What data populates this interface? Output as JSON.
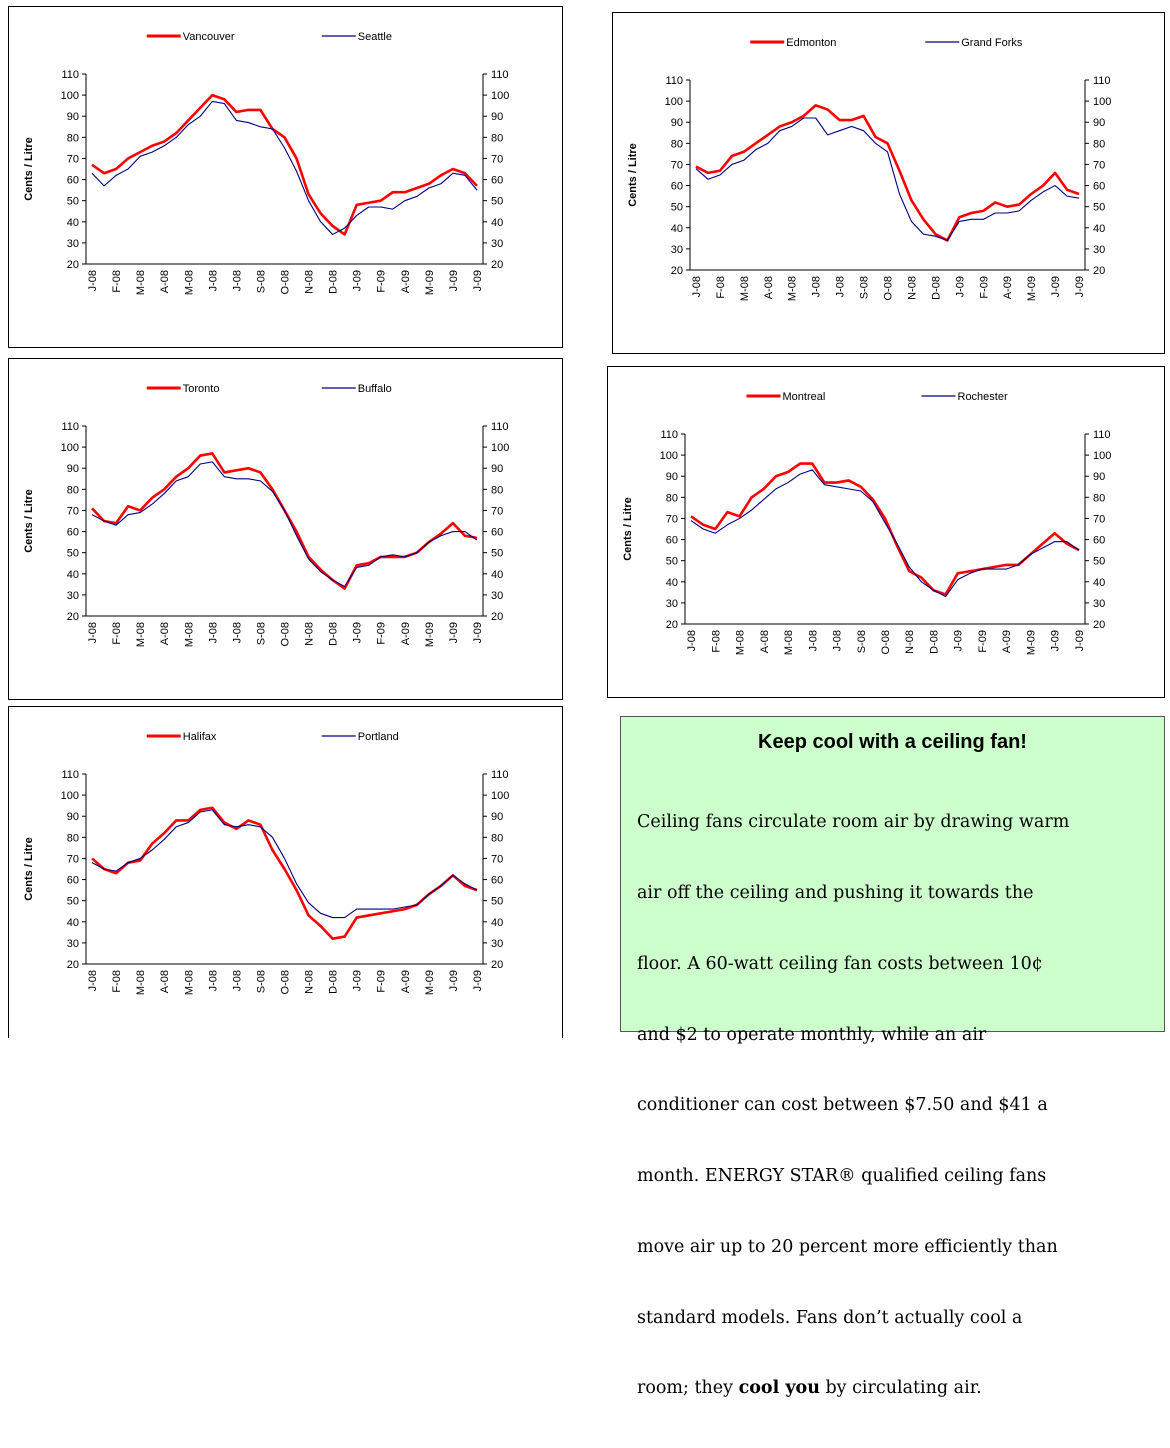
{
  "chart_data": [
    {
      "type": "line",
      "ylabel": "Cents / Litre",
      "categories": [
        "J-08",
        null,
        "F-08",
        null,
        "M-08",
        null,
        "A-08",
        null,
        "M-08",
        null,
        "J-08",
        null,
        "J-08",
        null,
        "S-08",
        null,
        "O-08",
        null,
        "N-08",
        null,
        "D-08",
        null,
        "J-09",
        null,
        "F-09",
        null,
        "A-09",
        null,
        "M-09",
        null,
        "J-09",
        null,
        "J-09"
      ],
      "series": [
        {
          "name": "Vancouver",
          "color": "#ff0000",
          "values": [
            67,
            63,
            65,
            70,
            73,
            76,
            78,
            82,
            88,
            94,
            100,
            98,
            92,
            93,
            93,
            84,
            80,
            70,
            53,
            44,
            38,
            34,
            48,
            49,
            50,
            54,
            54,
            56,
            58,
            62,
            65,
            63,
            57
          ]
        },
        {
          "name": "Seattle",
          "color": "#000080",
          "values": [
            63,
            57,
            62,
            65,
            71,
            73,
            76,
            80,
            86,
            90,
            97,
            96,
            88,
            87,
            85,
            84,
            75,
            64,
            50,
            40,
            34,
            37,
            43,
            47,
            47,
            46,
            50,
            52,
            56,
            58,
            63,
            62,
            55
          ]
        }
      ],
      "ylim": [
        20,
        110
      ],
      "yticks": [
        20,
        30,
        40,
        50,
        60,
        70,
        80,
        90,
        100,
        110
      ],
      "y2lim": [
        20,
        110
      ],
      "y2ticks": [
        20,
        30,
        40,
        50,
        60,
        70,
        80,
        90,
        100,
        110
      ]
    },
    {
      "type": "line",
      "ylabel": "Cents / Litre",
      "categories": [
        "J-08",
        null,
        "F-08",
        null,
        "M-08",
        null,
        "A-08",
        null,
        "M-08",
        null,
        "J-08",
        null,
        "J-08",
        null,
        "S-08",
        null,
        "O-08",
        null,
        "N-08",
        null,
        "D-08",
        null,
        "J-09",
        null,
        "F-09",
        null,
        "A-09",
        null,
        "M-09",
        null,
        "J-09",
        null,
        "J-09"
      ],
      "series": [
        {
          "name": "Edmonton",
          "color": "#ff0000",
          "values": [
            69,
            66,
            67,
            74,
            76,
            80,
            84,
            88,
            90,
            93,
            98,
            96,
            91,
            91,
            93,
            83,
            80,
            67,
            53,
            44,
            37,
            34,
            45,
            47,
            48,
            52,
            50,
            51,
            56,
            60,
            66,
            58,
            56
          ]
        },
        {
          "name": "Grand Forks",
          "color": "#000080",
          "values": [
            68,
            63,
            65,
            70,
            72,
            77,
            80,
            86,
            88,
            92,
            92,
            84,
            86,
            88,
            86,
            80,
            76,
            56,
            43,
            37,
            36,
            34,
            43,
            44,
            44,
            47,
            47,
            48,
            53,
            57,
            60,
            55,
            54
          ]
        }
      ],
      "ylim": [
        20,
        110
      ],
      "yticks": [
        20,
        30,
        40,
        50,
        60,
        70,
        80,
        90,
        100,
        110
      ],
      "y2lim": [
        20,
        110
      ],
      "y2ticks": [
        20,
        30,
        40,
        50,
        60,
        70,
        80,
        90,
        100,
        110
      ]
    },
    {
      "type": "line",
      "ylabel": "Cents / Litre",
      "categories": [
        "J-08",
        null,
        "F-08",
        null,
        "M-08",
        null,
        "A-08",
        null,
        "M-08",
        null,
        "J-08",
        null,
        "J-08",
        null,
        "S-08",
        null,
        "O-08",
        null,
        "N-08",
        null,
        "D-08",
        null,
        "J-09",
        null,
        "F-09",
        null,
        "A-09",
        null,
        "M-09",
        null,
        "J-09",
        null,
        "J-09"
      ],
      "series": [
        {
          "name": "Toronto",
          "color": "#ff0000",
          "values": [
            71,
            65,
            64,
            72,
            70,
            76,
            80,
            86,
            90,
            96,
            97,
            88,
            89,
            90,
            88,
            80,
            70,
            60,
            48,
            42,
            37,
            33,
            44,
            45,
            48,
            48,
            48,
            50,
            55,
            59,
            64,
            58,
            57
          ]
        },
        {
          "name": "Buffalo",
          "color": "#000080",
          "values": [
            68,
            65,
            63,
            68,
            69,
            73,
            78,
            84,
            86,
            92,
            93,
            86,
            85,
            85,
            84,
            79,
            70,
            58,
            47,
            41,
            37,
            34,
            43,
            44,
            48,
            49,
            48,
            50,
            55,
            58,
            60,
            60,
            56
          ]
        }
      ],
      "ylim": [
        20,
        110
      ],
      "yticks": [
        20,
        30,
        40,
        50,
        60,
        70,
        80,
        90,
        100,
        110
      ],
      "y2lim": [
        20,
        110
      ],
      "y2ticks": [
        20,
        30,
        40,
        50,
        60,
        70,
        80,
        90,
        100,
        110
      ]
    },
    {
      "type": "line",
      "ylabel": "Cents / Litre",
      "categories": [
        "J-08",
        null,
        "F-08",
        null,
        "M-08",
        null,
        "A-08",
        null,
        "M-08",
        null,
        "J-08",
        null,
        "J-08",
        null,
        "S-08",
        null,
        "O-08",
        null,
        "N-08",
        null,
        "D-08",
        null,
        "J-09",
        null,
        "F-09",
        null,
        "A-09",
        null,
        "M-09",
        null,
        "J-09",
        null,
        "J-09"
      ],
      "series": [
        {
          "name": "Montreal",
          "color": "#ff0000",
          "values": [
            71,
            67,
            65,
            73,
            71,
            80,
            84,
            90,
            92,
            96,
            96,
            87,
            87,
            88,
            85,
            79,
            70,
            57,
            45,
            42,
            36,
            34,
            44,
            45,
            46,
            47,
            48,
            48,
            53,
            58,
            63,
            58,
            55
          ]
        },
        {
          "name": "Rochester",
          "color": "#000080",
          "values": [
            69,
            65,
            63,
            67,
            70,
            74,
            79,
            84,
            87,
            91,
            93,
            86,
            85,
            84,
            83,
            78,
            68,
            58,
            47,
            40,
            36,
            33,
            41,
            44,
            46,
            46,
            46,
            48,
            53,
            56,
            59,
            59,
            55
          ]
        }
      ],
      "ylim": [
        20,
        110
      ],
      "yticks": [
        20,
        30,
        40,
        50,
        60,
        70,
        80,
        90,
        100,
        110
      ],
      "y2lim": [
        20,
        110
      ],
      "y2ticks": [
        20,
        30,
        40,
        50,
        60,
        70,
        80,
        90,
        100,
        110
      ]
    },
    {
      "type": "line",
      "ylabel": "Cents / Litre",
      "categories": [
        "J-08",
        null,
        "F-08",
        null,
        "M-08",
        null,
        "A-08",
        null,
        "M-08",
        null,
        "J-08",
        null,
        "J-08",
        null,
        "S-08",
        null,
        "O-08",
        null,
        "N-08",
        null,
        "D-08",
        null,
        "J-09",
        null,
        "F-09",
        null,
        "A-09",
        null,
        "M-09",
        null,
        "J-09",
        null,
        "J-09"
      ],
      "series": [
        {
          "name": "Halifax",
          "color": "#ff0000",
          "values": [
            70,
            65,
            63,
            68,
            69,
            77,
            82,
            88,
            88,
            93,
            94,
            87,
            84,
            88,
            86,
            74,
            65,
            55,
            43,
            38,
            32,
            33,
            42,
            43,
            44,
            45,
            46,
            48,
            53,
            57,
            62,
            57,
            55
          ]
        },
        {
          "name": "Portland",
          "color": "#000080",
          "values": [
            68,
            65,
            64,
            68,
            70,
            74,
            79,
            85,
            87,
            92,
            93,
            86,
            85,
            86,
            85,
            80,
            70,
            58,
            49,
            44,
            42,
            42,
            46,
            46,
            46,
            46,
            47,
            48,
            53,
            57,
            62,
            58,
            55
          ]
        }
      ],
      "ylim": [
        20,
        110
      ],
      "yticks": [
        20,
        30,
        40,
        50,
        60,
        70,
        80,
        90,
        100,
        110
      ],
      "y2lim": [
        20,
        110
      ],
      "y2ticks": [
        20,
        30,
        40,
        50,
        60,
        70,
        80,
        90,
        100,
        110
      ]
    }
  ],
  "infobox": {
    "title": "Keep cool with a ceiling fan!",
    "lines": [
      "Ceiling fans circulate room air by drawing warm",
      "air off the ceiling and pushing it towards the",
      "floor. A 60-watt ceiling fan costs between 10¢",
      "and $2 to operate monthly, while an air",
      "conditioner can cost between $7.50 and $41 a",
      "month. ENERGY STAR® qualified ceiling fans",
      "move air up to 20 percent more efficiently than",
      "standard models. Fans don’t actually cool a"
    ],
    "last_line": [
      "room; they ",
      "cool you",
      " by circulating air."
    ]
  }
}
